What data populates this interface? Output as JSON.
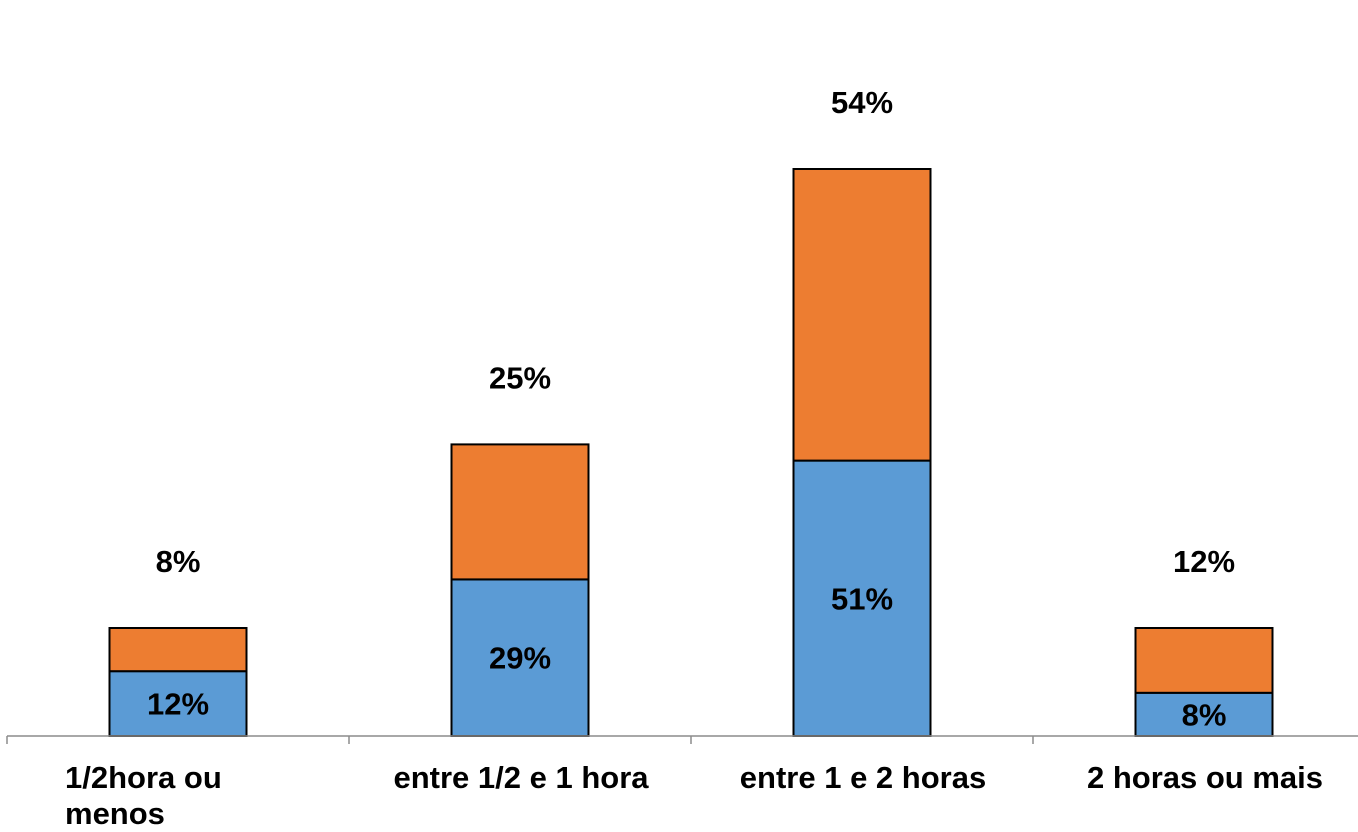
{
  "chart_data": {
    "type": "bar",
    "stacked": true,
    "categories": [
      "1/2hora ou menos",
      "entre 1/2 e 1 hora",
      "entre 1 e 2 horas",
      "2 horas ou mais"
    ],
    "series": [
      {
        "color": "#5B9BD5",
        "values": [
          12,
          29,
          51,
          8
        ],
        "labels": [
          "12%",
          "29%",
          "51%",
          "8%"
        ]
      },
      {
        "color": "#ED7D31",
        "values": [
          8,
          25,
          54,
          12
        ],
        "labels": [
          "8%",
          "25%",
          "54%",
          "12%"
        ]
      }
    ],
    "title": "",
    "xlabel": "",
    "ylabel": "",
    "ylim": [
      0,
      105
    ],
    "grid": false,
    "legend": "none"
  }
}
